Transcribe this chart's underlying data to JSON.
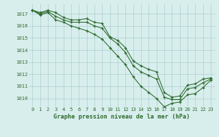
{
  "hours": [
    0,
    1,
    2,
    3,
    4,
    5,
    6,
    7,
    8,
    9,
    10,
    11,
    12,
    13,
    14,
    15,
    16,
    17,
    18,
    19,
    20,
    21,
    22,
    23
  ],
  "line1": [
    1017.3,
    1017.1,
    1017.3,
    1017.1,
    1016.7,
    1016.5,
    1016.5,
    1016.6,
    1016.3,
    1016.2,
    1015.1,
    1014.8,
    1014.2,
    1013.1,
    1012.7,
    1012.4,
    1012.2,
    1010.5,
    1010.1,
    1010.2,
    1011.1,
    1011.2,
    1011.6,
    1011.7
  ],
  "line2": [
    1017.3,
    1017.0,
    1017.2,
    1016.8,
    1016.5,
    1016.3,
    1016.3,
    1016.3,
    1016.0,
    1015.8,
    1015.0,
    1014.5,
    1013.8,
    1012.7,
    1012.2,
    1011.9,
    1011.6,
    1010.1,
    1009.9,
    1009.9,
    1010.8,
    1010.9,
    1011.3,
    1011.6
  ],
  "line3": [
    1017.3,
    1016.9,
    1017.1,
    1016.5,
    1016.3,
    1016.0,
    1015.8,
    1015.6,
    1015.3,
    1014.9,
    1014.2,
    1013.5,
    1012.8,
    1011.8,
    1011.0,
    1010.5,
    1010.0,
    1009.3,
    1009.6,
    1009.7,
    1010.3,
    1010.4,
    1010.9,
    1011.5
  ],
  "ylim": [
    1009.3,
    1017.8
  ],
  "yticks": [
    1010,
    1011,
    1012,
    1013,
    1014,
    1015,
    1016,
    1017
  ],
  "xlabel": "Graphe pression niveau de la mer (hPa)",
  "bg_color": "#d8eeed",
  "grid_color": "#aacccc",
  "line_color": "#2d6a2d",
  "tick_fontsize": 5.2,
  "xlabel_fontsize": 6.2
}
